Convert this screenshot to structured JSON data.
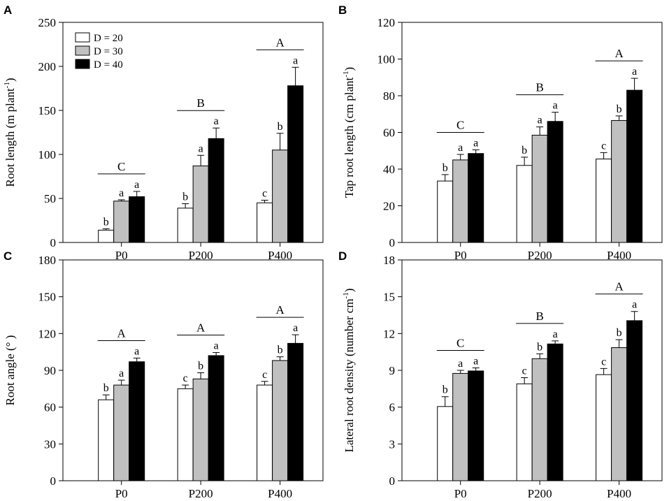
{
  "legend": {
    "entries": [
      {
        "label": "D = 20",
        "color": "#ffffff"
      },
      {
        "label": "D = 30",
        "color": "#c0c0c0"
      },
      {
        "label": "D = 40",
        "color": "#000000"
      }
    ]
  },
  "chart_data": [
    {
      "panel": "A",
      "type": "bar",
      "categories": [
        "P0",
        "P200",
        "P400"
      ],
      "ylabel": "Root length (m plant",
      "ylabel_sup": "-1",
      "ylabel_tail": ")",
      "ylim": [
        0,
        250
      ],
      "yticks": [
        0,
        50,
        100,
        150,
        200,
        250
      ],
      "series": [
        {
          "name": "D = 20",
          "values": [
            14,
            39,
            45
          ],
          "errors": [
            1.5,
            5,
            3
          ],
          "letters": [
            "b",
            "b",
            "c"
          ]
        },
        {
          "name": "D = 30",
          "values": [
            47,
            87,
            105
          ],
          "errors": [
            1.5,
            12,
            19
          ],
          "letters": [
            "a",
            "a",
            "b"
          ]
        },
        {
          "name": "D = 40",
          "values": [
            52,
            118,
            178
          ],
          "errors": [
            6,
            12,
            21
          ],
          "letters": [
            "a",
            "a",
            "a"
          ]
        }
      ],
      "group_letters": [
        "C",
        "B",
        "A"
      ]
    },
    {
      "panel": "B",
      "type": "bar",
      "categories": [
        "P0",
        "P200",
        "P400"
      ],
      "ylabel": "Tap root length (cm plant",
      "ylabel_sup": "-1",
      "ylabel_tail": ")",
      "ylim": [
        0,
        120
      ],
      "yticks": [
        0,
        20,
        40,
        60,
        80,
        100,
        120
      ],
      "series": [
        {
          "name": "D = 20",
          "values": [
            33.5,
            42,
            45.5
          ],
          "errors": [
            3.5,
            4.5,
            3.5
          ],
          "letters": [
            "b",
            "b",
            "c"
          ]
        },
        {
          "name": "D = 30",
          "values": [
            45,
            58.5,
            66.5
          ],
          "errors": [
            3,
            4.5,
            2.5
          ],
          "letters": [
            "a",
            "a",
            "b"
          ]
        },
        {
          "name": "D = 40",
          "values": [
            48.5,
            66,
            83
          ],
          "errors": [
            2,
            5,
            6.5
          ],
          "letters": [
            "a",
            "a",
            "a"
          ]
        }
      ],
      "group_letters": [
        "C",
        "B",
        "A"
      ]
    },
    {
      "panel": "C",
      "type": "bar",
      "categories": [
        "P0",
        "P200",
        "P400"
      ],
      "ylabel": "Root angle (° )",
      "ylabel_sup": "",
      "ylabel_tail": "",
      "ylim": [
        0,
        180
      ],
      "yticks": [
        0,
        30,
        60,
        90,
        120,
        150,
        180
      ],
      "series": [
        {
          "name": "D = 20",
          "values": [
            66,
            75,
            78
          ],
          "errors": [
            4,
            3,
            3
          ],
          "letters": [
            "b",
            "c",
            "c"
          ]
        },
        {
          "name": "D = 30",
          "values": [
            78,
            83,
            98
          ],
          "errors": [
            4,
            5,
            3
          ],
          "letters": [
            "a",
            "b",
            "b"
          ]
        },
        {
          "name": "D = 40",
          "values": [
            97,
            102,
            112
          ],
          "errors": [
            3,
            2.5,
            7
          ],
          "letters": [
            "a",
            "a",
            "a"
          ]
        }
      ],
      "group_letters": [
        "A",
        "A",
        "A"
      ]
    },
    {
      "panel": "D",
      "type": "bar",
      "categories": [
        "P0",
        "P200",
        "P400"
      ],
      "ylabel": "Lateral root density (number cm",
      "ylabel_sup": "-1",
      "ylabel_tail": ")",
      "ylim": [
        0,
        18
      ],
      "yticks": [
        0,
        3,
        6,
        9,
        12,
        15,
        18
      ],
      "series": [
        {
          "name": "D = 20",
          "values": [
            6.05,
            7.9,
            8.65
          ],
          "errors": [
            0.8,
            0.5,
            0.5
          ],
          "letters": [
            "b",
            "c",
            "c"
          ]
        },
        {
          "name": "D = 30",
          "values": [
            8.75,
            9.95,
            10.85
          ],
          "errors": [
            0.25,
            0.4,
            0.65
          ],
          "letters": [
            "a",
            "b",
            "b"
          ]
        },
        {
          "name": "D = 40",
          "values": [
            8.95,
            11.15,
            13.05
          ],
          "errors": [
            0.25,
            0.25,
            0.75
          ],
          "letters": [
            "a",
            "a",
            "a"
          ]
        }
      ],
      "group_letters": [
        "C",
        "B",
        "A"
      ]
    }
  ]
}
